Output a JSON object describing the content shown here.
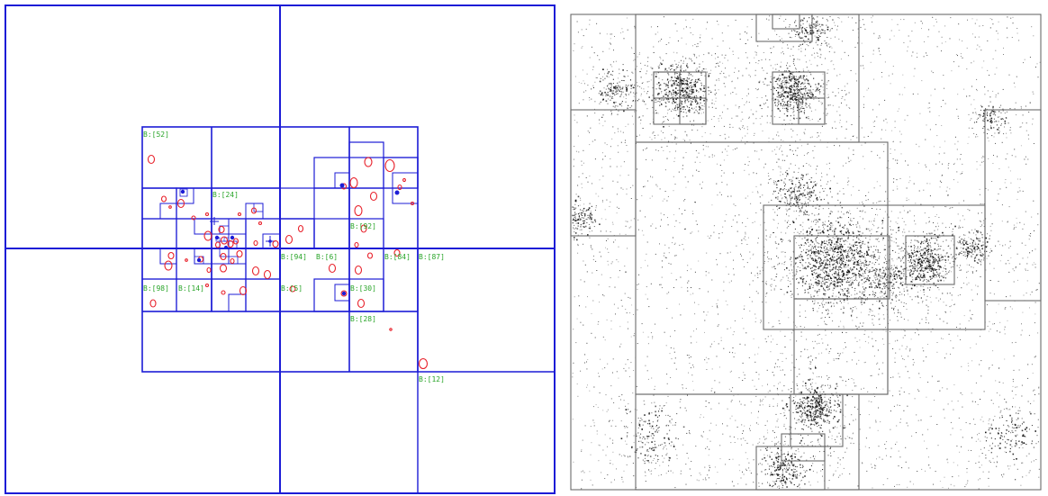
{
  "colors": {
    "grid_line": "#1c1cd6",
    "circle": "#e8202a",
    "label": "#2aa52a",
    "cell_border": "#6b6b6b",
    "background": "#ffffff",
    "particle": "#111111"
  },
  "left_panel": {
    "name": "quadtree-subdivision",
    "labels": [
      "B:[52]",
      "B:[24]",
      "B:[92]",
      "B:[94]",
      "B:[6]",
      "B:[84]",
      "B:[87]",
      "B:[98]",
      "B:[14]",
      "B:[5]",
      "B:[30]",
      "B:[28]",
      "B:[12]"
    ]
  },
  "right_panel": {
    "name": "particle-density-with-cells"
  }
}
